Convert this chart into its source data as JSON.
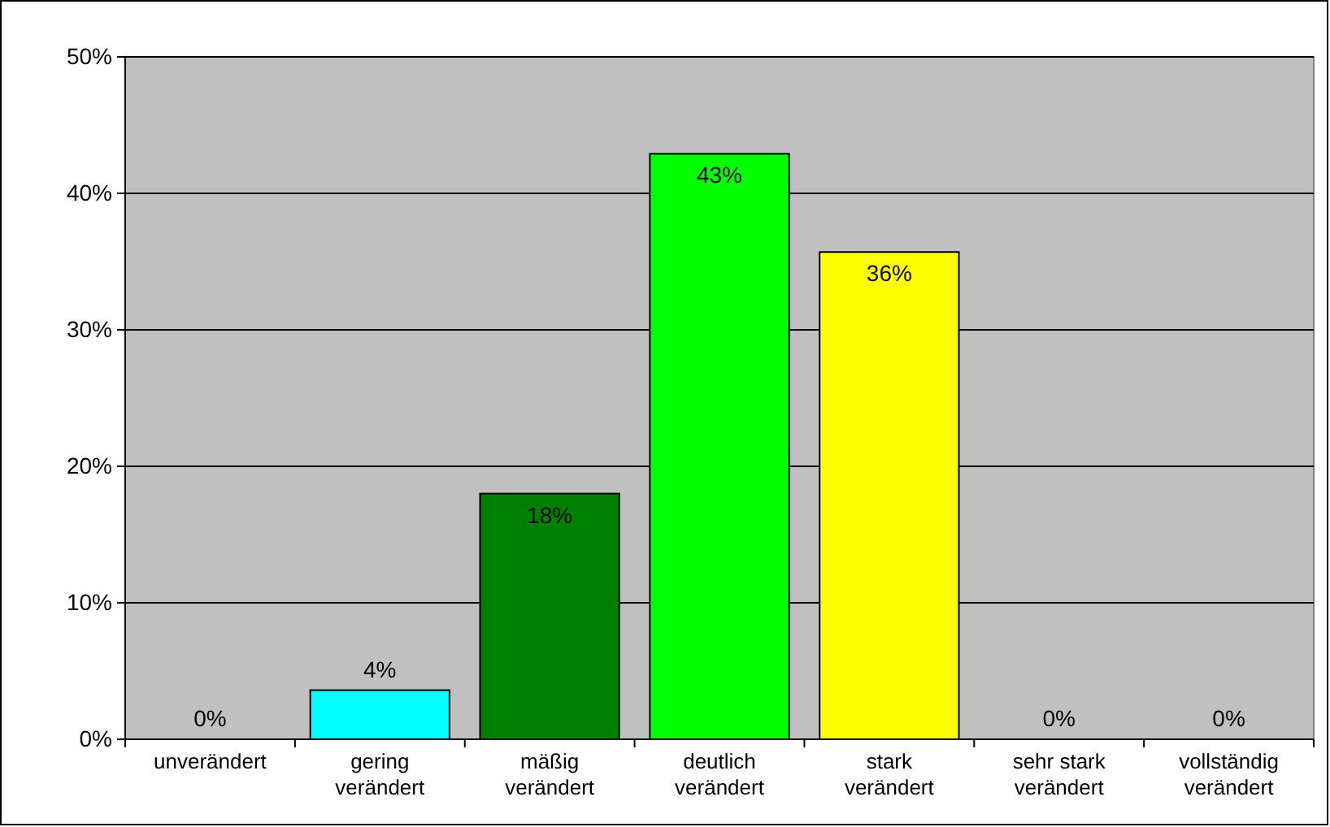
{
  "chart_data": {
    "type": "bar",
    "categories": [
      "unverändert",
      "gering verändert",
      "mäßig verändert",
      "deutlich verändert",
      "stark verändert",
      "sehr stark verändert",
      "vollständig verändert"
    ],
    "values": [
      0,
      3.6,
      18,
      42.9,
      35.7,
      0,
      0
    ],
    "colors": [
      "#0000ff",
      "#00ffff",
      "#008000",
      "#00ff00",
      "#ffff00",
      "#ff9900",
      "#ff0000"
    ],
    "value_labels": [
      "0%",
      "4%",
      "18%",
      "43%",
      "36%",
      "0%",
      "0%"
    ],
    "ylim": [
      0,
      50
    ],
    "yticks": [
      {
        "value": 0,
        "label": "0%"
      },
      {
        "value": 10,
        "label": "10%"
      },
      {
        "value": 20,
        "label": "20%"
      },
      {
        "value": 30,
        "label": "30%"
      },
      {
        "value": 40,
        "label": "40%"
      },
      {
        "value": 50,
        "label": "50%"
      }
    ],
    "grid": "y"
  }
}
